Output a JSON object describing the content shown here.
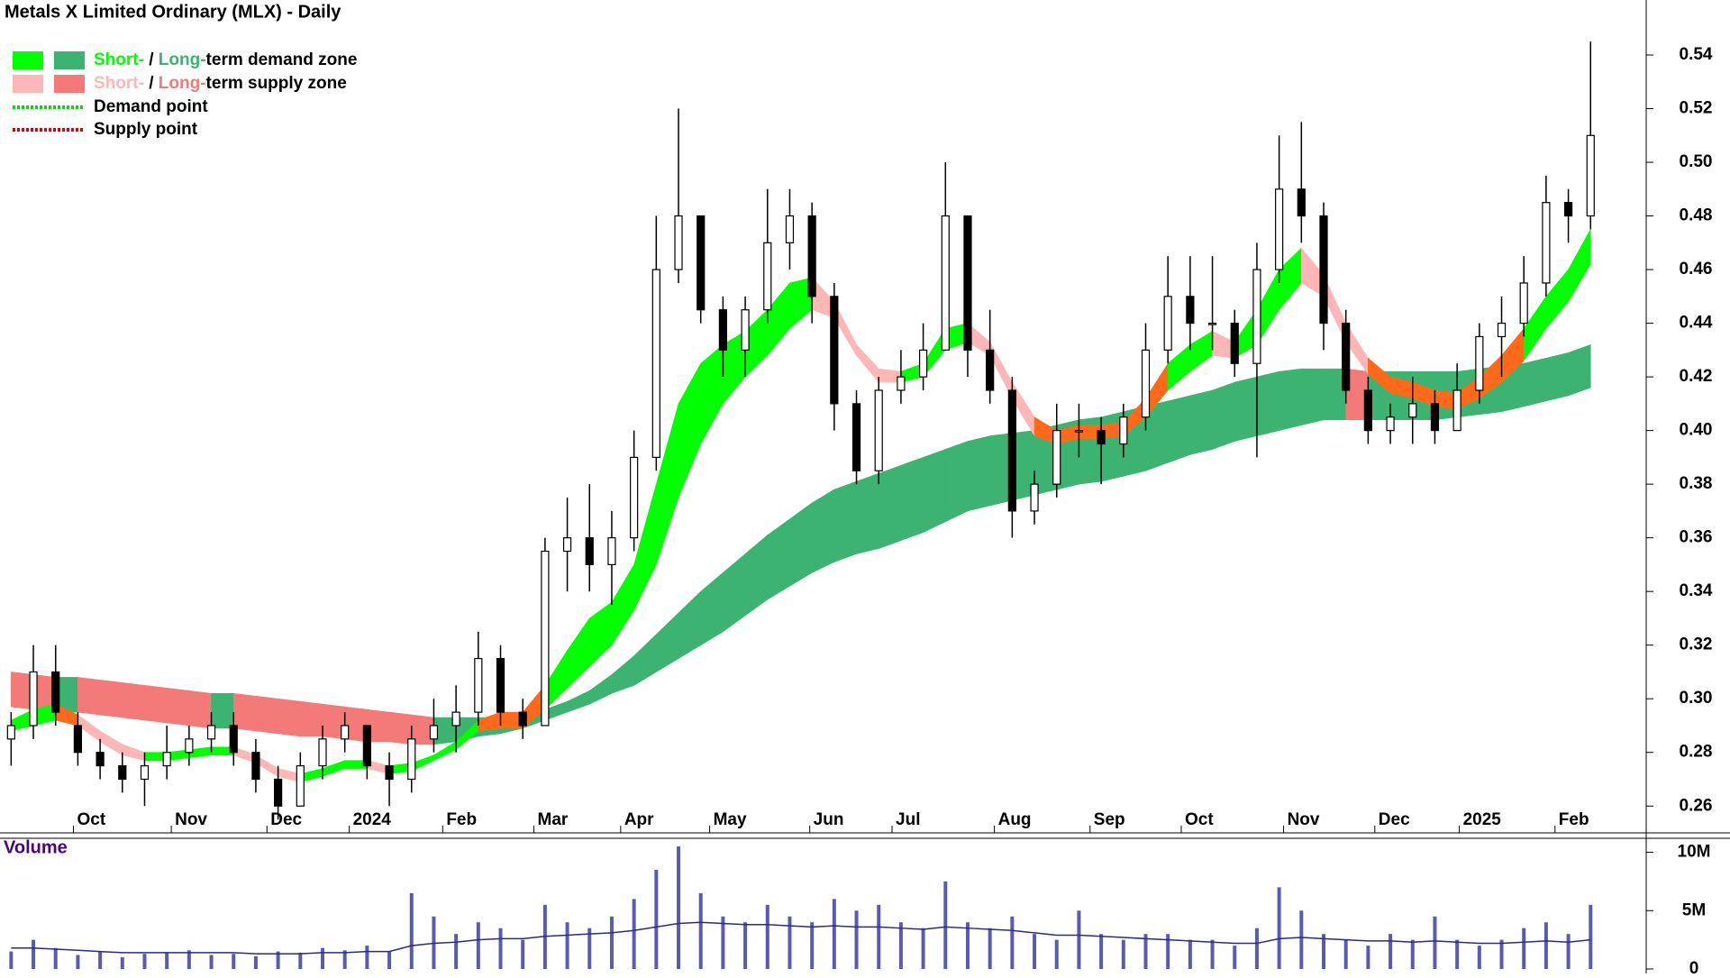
{
  "chart_data": {
    "type": "candlestick",
    "title": "Metals X Limited Ordinary (MLX) - Daily",
    "legend": {
      "zones": [
        {
          "short": "Short-",
          "sep": " / ",
          "long": "Long-",
          "text": "term demand zone",
          "short_color": "#00ff00",
          "long_color": "#3cb371"
        },
        {
          "short": "Short-",
          "sep": " / ",
          "long": "Long-",
          "text": "term supply zone",
          "short_color": "#ffb6b6",
          "long_color": "#f47a7a"
        }
      ],
      "points": [
        {
          "text": "Demand point",
          "color": "#00dd00"
        },
        {
          "text": "Supply point",
          "color": "#e00000"
        }
      ]
    },
    "overlap_color": "#ff6a1a",
    "xlim": [
      -0.5,
      73.5
    ],
    "xticks": [
      {
        "value": 2.8,
        "label": "Oct"
      },
      {
        "value": 7.2,
        "label": "Nov"
      },
      {
        "value": 11.5,
        "label": "Dec"
      },
      {
        "value": 15.2,
        "label": "2024"
      },
      {
        "value": 19.4,
        "label": "Feb"
      },
      {
        "value": 23.5,
        "label": "Mar"
      },
      {
        "value": 27.4,
        "label": "Apr"
      },
      {
        "value": 31.4,
        "label": "May"
      },
      {
        "value": 35.9,
        "label": "Jun"
      },
      {
        "value": 39.6,
        "label": "Jul"
      },
      {
        "value": 44.2,
        "label": "Aug"
      },
      {
        "value": 48.5,
        "label": "Sep"
      },
      {
        "value": 52.6,
        "label": "Oct"
      },
      {
        "value": 57.2,
        "label": "Nov"
      },
      {
        "value": 61.3,
        "label": "Dec"
      },
      {
        "value": 65.1,
        "label": "2025"
      },
      {
        "value": 69.4,
        "label": "Feb"
      }
    ],
    "ylim": [
      0.25,
      0.5605
    ],
    "yticks": [
      0.26,
      0.28,
      {
        "value": 0.3,
        "label": "0.30"
      },
      0.32,
      0.34,
      0.36,
      0.38,
      {
        "value": 0.4,
        "label": "0.40"
      },
      0.42,
      0.44,
      0.46,
      0.48,
      {
        "value": 0.5,
        "label": "0.50"
      },
      0.52,
      0.54
    ],
    "open": [
      0.285,
      0.29,
      0.31,
      0.29,
      0.28,
      0.275,
      0.27,
      0.275,
      0.28,
      0.285,
      0.29,
      0.28,
      0.27,
      0.26,
      0.275,
      0.285,
      0.29,
      0.275,
      0.27,
      0.285,
      0.29,
      0.295,
      0.315,
      0.295,
      0.29,
      0.355,
      0.36,
      0.35,
      0.36,
      0.39,
      0.46,
      0.48,
      0.445,
      0.43,
      0.445,
      0.47,
      0.48,
      0.45,
      0.41,
      0.385,
      0.415,
      0.42,
      0.43,
      0.48,
      0.43,
      0.415,
      0.37,
      0.38,
      0.4,
      0.4,
      0.395,
      0.405,
      0.43,
      0.45,
      0.44,
      0.44,
      0.425,
      0.46,
      0.49,
      0.48,
      0.44,
      0.415,
      0.4,
      0.405,
      0.41,
      0.4,
      0.415,
      0.435,
      0.44,
      0.455,
      0.485,
      0.48
    ],
    "high": [
      0.295,
      0.32,
      0.32,
      0.295,
      0.285,
      0.28,
      0.28,
      0.29,
      0.29,
      0.295,
      0.295,
      0.285,
      0.275,
      0.28,
      0.29,
      0.295,
      0.29,
      0.28,
      0.29,
      0.3,
      0.305,
      0.325,
      0.32,
      0.3,
      0.36,
      0.375,
      0.38,
      0.37,
      0.4,
      0.48,
      0.52,
      0.48,
      0.45,
      0.45,
      0.49,
      0.49,
      0.485,
      0.455,
      0.415,
      0.42,
      0.43,
      0.44,
      0.5,
      0.48,
      0.445,
      0.42,
      0.385,
      0.41,
      0.41,
      0.405,
      0.41,
      0.44,
      0.465,
      0.465,
      0.465,
      0.445,
      0.47,
      0.51,
      0.515,
      0.485,
      0.445,
      0.42,
      0.41,
      0.42,
      0.415,
      0.425,
      0.44,
      0.45,
      0.465,
      0.495,
      0.49,
      0.545
    ],
    "low": [
      0.275,
      0.285,
      0.29,
      0.275,
      0.27,
      0.265,
      0.26,
      0.27,
      0.275,
      0.28,
      0.275,
      0.265,
      0.255,
      0.26,
      0.27,
      0.28,
      0.27,
      0.26,
      0.265,
      0.28,
      0.28,
      0.29,
      0.29,
      0.285,
      0.29,
      0.34,
      0.34,
      0.335,
      0.355,
      0.385,
      0.455,
      0.44,
      0.42,
      0.42,
      0.44,
      0.46,
      0.44,
      0.4,
      0.38,
      0.38,
      0.41,
      0.415,
      0.43,
      0.42,
      0.41,
      0.36,
      0.365,
      0.375,
      0.39,
      0.38,
      0.39,
      0.4,
      0.425,
      0.43,
      0.43,
      0.42,
      0.39,
      0.455,
      0.47,
      0.43,
      0.41,
      0.395,
      0.395,
      0.395,
      0.395,
      0.4,
      0.41,
      0.42,
      0.435,
      0.45,
      0.47,
      0.475
    ],
    "close": [
      0.29,
      0.31,
      0.295,
      0.28,
      0.275,
      0.27,
      0.275,
      0.28,
      0.285,
      0.29,
      0.28,
      0.27,
      0.26,
      0.275,
      0.285,
      0.29,
      0.275,
      0.27,
      0.285,
      0.29,
      0.295,
      0.315,
      0.295,
      0.29,
      0.355,
      0.36,
      0.35,
      0.36,
      0.39,
      0.46,
      0.48,
      0.445,
      0.43,
      0.445,
      0.47,
      0.48,
      0.45,
      0.41,
      0.385,
      0.415,
      0.42,
      0.43,
      0.48,
      0.43,
      0.415,
      0.37,
      0.38,
      0.4,
      0.4,
      0.395,
      0.405,
      0.43,
      0.45,
      0.44,
      0.44,
      0.425,
      0.46,
      0.49,
      0.48,
      0.44,
      0.415,
      0.4,
      0.405,
      0.41,
      0.4,
      0.415,
      0.435,
      0.44,
      0.455,
      0.485,
      0.48,
      0.51
    ],
    "bands": {
      "long": {
        "upper": [
          0.31,
          0.309,
          0.308,
          0.308,
          0.307,
          0.306,
          0.305,
          0.304,
          0.303,
          0.302,
          0.302,
          0.301,
          0.3,
          0.299,
          0.298,
          0.297,
          0.296,
          0.295,
          0.294,
          0.293,
          0.293,
          0.293,
          0.293,
          0.294,
          0.296,
          0.299,
          0.303,
          0.309,
          0.316,
          0.324,
          0.332,
          0.34,
          0.347,
          0.354,
          0.361,
          0.367,
          0.373,
          0.378,
          0.381,
          0.384,
          0.387,
          0.39,
          0.393,
          0.396,
          0.398,
          0.399,
          0.4,
          0.402,
          0.404,
          0.405,
          0.407,
          0.409,
          0.411,
          0.413,
          0.415,
          0.418,
          0.42,
          0.422,
          0.423,
          0.423,
          0.423,
          0.422,
          0.422,
          0.422,
          0.422,
          0.422,
          0.423,
          0.424,
          0.425,
          0.427,
          0.429,
          0.432
        ],
        "lower": [
          0.297,
          0.296,
          0.295,
          0.295,
          0.294,
          0.293,
          0.292,
          0.291,
          0.29,
          0.289,
          0.289,
          0.288,
          0.287,
          0.286,
          0.286,
          0.285,
          0.284,
          0.284,
          0.283,
          0.283,
          0.284,
          0.286,
          0.287,
          0.289,
          0.292,
          0.295,
          0.298,
          0.302,
          0.305,
          0.31,
          0.315,
          0.32,
          0.325,
          0.331,
          0.337,
          0.342,
          0.347,
          0.351,
          0.354,
          0.356,
          0.359,
          0.362,
          0.366,
          0.37,
          0.372,
          0.374,
          0.376,
          0.378,
          0.38,
          0.381,
          0.383,
          0.385,
          0.388,
          0.391,
          0.393,
          0.396,
          0.398,
          0.4,
          0.402,
          0.404,
          0.404,
          0.404,
          0.404,
          0.404,
          0.404,
          0.405,
          0.406,
          0.407,
          0.409,
          0.411,
          0.413,
          0.416
        ]
      },
      "short": {
        "upper": [
          0.292,
          0.296,
          0.298,
          0.294,
          0.288,
          0.283,
          0.28,
          0.28,
          0.281,
          0.282,
          0.282,
          0.279,
          0.274,
          0.272,
          0.274,
          0.277,
          0.277,
          0.275,
          0.276,
          0.279,
          0.284,
          0.292,
          0.295,
          0.295,
          0.305,
          0.318,
          0.33,
          0.336,
          0.35,
          0.38,
          0.41,
          0.425,
          0.432,
          0.437,
          0.445,
          0.455,
          0.457,
          0.448,
          0.432,
          0.423,
          0.422,
          0.425,
          0.438,
          0.44,
          0.433,
          0.418,
          0.405,
          0.4,
          0.402,
          0.402,
          0.403,
          0.412,
          0.425,
          0.432,
          0.437,
          0.433,
          0.445,
          0.46,
          0.468,
          0.458,
          0.44,
          0.427,
          0.42,
          0.418,
          0.415,
          0.414,
          0.42,
          0.428,
          0.438,
          0.45,
          0.46,
          0.475
        ],
        "lower": [
          0.288,
          0.29,
          0.292,
          0.29,
          0.284,
          0.279,
          0.277,
          0.277,
          0.278,
          0.279,
          0.279,
          0.276,
          0.271,
          0.269,
          0.271,
          0.274,
          0.274,
          0.272,
          0.273,
          0.277,
          0.281,
          0.288,
          0.289,
          0.289,
          0.296,
          0.304,
          0.312,
          0.32,
          0.333,
          0.35,
          0.375,
          0.395,
          0.41,
          0.42,
          0.428,
          0.438,
          0.445,
          0.442,
          0.428,
          0.418,
          0.418,
          0.42,
          0.43,
          0.433,
          0.428,
          0.412,
          0.398,
          0.395,
          0.397,
          0.397,
          0.398,
          0.405,
          0.415,
          0.422,
          0.428,
          0.427,
          0.432,
          0.445,
          0.455,
          0.45,
          0.433,
          0.421,
          0.414,
          0.412,
          0.409,
          0.408,
          0.412,
          0.418,
          0.426,
          0.438,
          0.448,
          0.462
        ]
      }
    },
    "volume": {
      "title": "Volume",
      "color": "#5a5ab4",
      "ylim": [
        0,
        11200000
      ],
      "yticks": [
        0,
        {
          "value": 5000000,
          "label": "5M"
        },
        {
          "value": 10000000,
          "label": "10M"
        }
      ],
      "values": [
        1500000,
        2500000,
        1800000,
        1200000,
        1500000,
        1000000,
        1300000,
        1400000,
        1600000,
        1200000,
        1300000,
        1100000,
        1500000,
        1400000,
        1800000,
        1600000,
        2000000,
        1500000,
        6500000,
        4500000,
        3000000,
        4000000,
        3500000,
        2500000,
        5500000,
        4000000,
        3500000,
        4500000,
        6000000,
        8500000,
        10500000,
        6500000,
        4500000,
        4000000,
        5500000,
        4500000,
        4000000,
        6000000,
        5000000,
        5500000,
        4000000,
        3500000,
        7500000,
        4000000,
        3500000,
        4500000,
        3000000,
        2500000,
        5000000,
        3000000,
        2500000,
        3000000,
        3000000,
        2500000,
        2500000,
        2000000,
        3500000,
        7000000,
        5000000,
        3000000,
        2500000,
        2000000,
        3000000,
        2500000,
        4500000,
        2500000,
        2000000,
        2500000,
        3500000,
        4000000,
        3000000,
        5500000
      ],
      "average": [
        1800000,
        1800000,
        1700000,
        1600000,
        1500000,
        1400000,
        1400000,
        1400000,
        1400000,
        1400000,
        1400000,
        1300000,
        1300000,
        1300000,
        1400000,
        1400000,
        1500000,
        1500000,
        2000000,
        2200000,
        2300000,
        2500000,
        2600000,
        2600000,
        2800000,
        2900000,
        3000000,
        3100000,
        3300000,
        3600000,
        3900000,
        4000000,
        3900000,
        3800000,
        3800000,
        3700000,
        3600000,
        3700000,
        3600000,
        3600000,
        3500000,
        3400000,
        3600000,
        3500000,
        3400000,
        3300000,
        3100000,
        2900000,
        2900000,
        2800000,
        2700000,
        2600000,
        2500000,
        2400000,
        2300000,
        2200000,
        2200000,
        2600000,
        2700000,
        2600000,
        2500000,
        2400000,
        2400000,
        2300000,
        2400000,
        2300000,
        2200000,
        2200000,
        2300000,
        2400000,
        2300000,
        2500000
      ]
    }
  }
}
